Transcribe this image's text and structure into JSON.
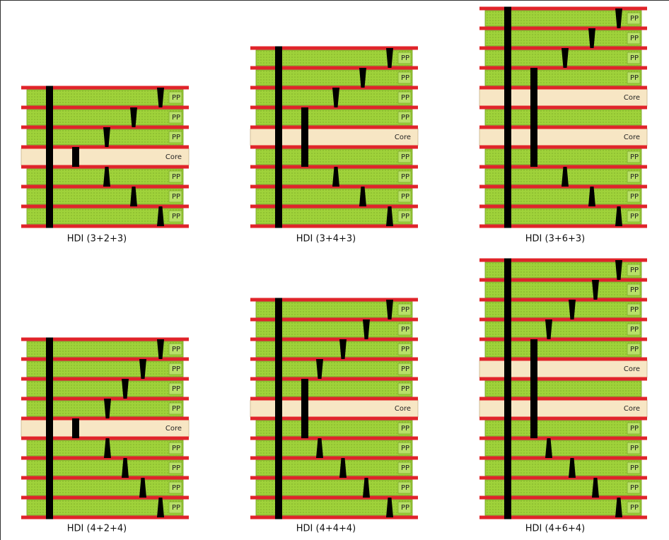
{
  "diagrams": [
    {
      "caption": "HDI (3+2+3)",
      "layers": [
        "PP",
        "PP",
        "PP",
        "Core",
        "PP",
        "PP",
        "PP"
      ]
    },
    {
      "caption": "HDI (3+4+3)",
      "layers": [
        "PP",
        "PP",
        "PP",
        "PP",
        "Core",
        "PP",
        "PP",
        "PP",
        "PP"
      ]
    },
    {
      "caption": "HDI (3+6+3)",
      "layers": [
        "PP",
        "PP",
        "PP",
        "PP",
        "Core",
        null,
        "Core",
        "PP",
        "PP",
        "PP",
        "PP"
      ]
    },
    {
      "caption": "HDI (4+2+4)",
      "layers": [
        "PP",
        "PP",
        "PP",
        "PP",
        "Core",
        "PP",
        "PP",
        "PP",
        "PP"
      ]
    },
    {
      "caption": "HDI (4+4+4)",
      "layers": [
        "PP",
        "PP",
        "PP",
        "PP",
        "PP",
        "Core",
        "PP",
        "PP",
        "PP",
        "PP",
        "PP"
      ]
    },
    {
      "caption": "HDI (4+6+4)",
      "layers": [
        "PP",
        "PP",
        "PP",
        "PP",
        "PP",
        "Core",
        null,
        "Core",
        "PP",
        "PP",
        "PP",
        "PP",
        "PP"
      ]
    }
  ]
}
